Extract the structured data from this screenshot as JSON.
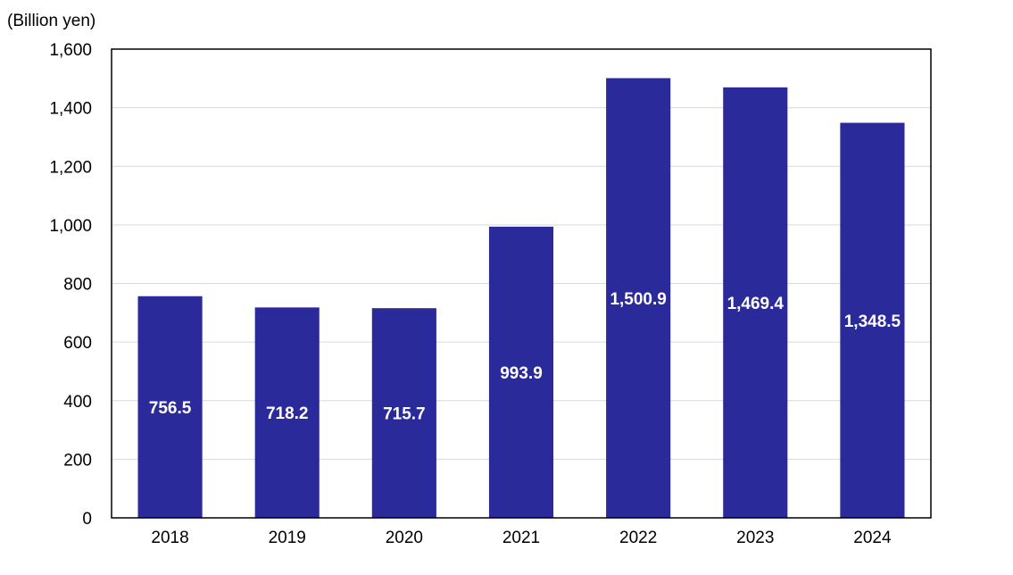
{
  "chart_data": {
    "type": "bar",
    "unit_label": "(Billion yen)",
    "categories": [
      "2018",
      "2019",
      "2020",
      "2021",
      "2022",
      "2023",
      "2024"
    ],
    "values": [
      756.5,
      718.2,
      715.7,
      993.9,
      1500.9,
      1469.4,
      1348.5
    ],
    "data_labels": [
      "756.5",
      "718.2",
      "715.7",
      "993.9",
      "1,500.9",
      "1,469.4",
      "1,348.5"
    ],
    "ylim": [
      0,
      1600
    ],
    "yticks": [
      0,
      200,
      400,
      600,
      800,
      1000,
      1200,
      1400,
      1600
    ],
    "ytick_labels": [
      "0",
      "200",
      "400",
      "600",
      "800",
      "1,000",
      "1,200",
      "1,400",
      "1,600"
    ],
    "bar_color": "#2b2a9b",
    "grid": true,
    "gridline_color": "#d9d9d9",
    "legend": "none"
  }
}
